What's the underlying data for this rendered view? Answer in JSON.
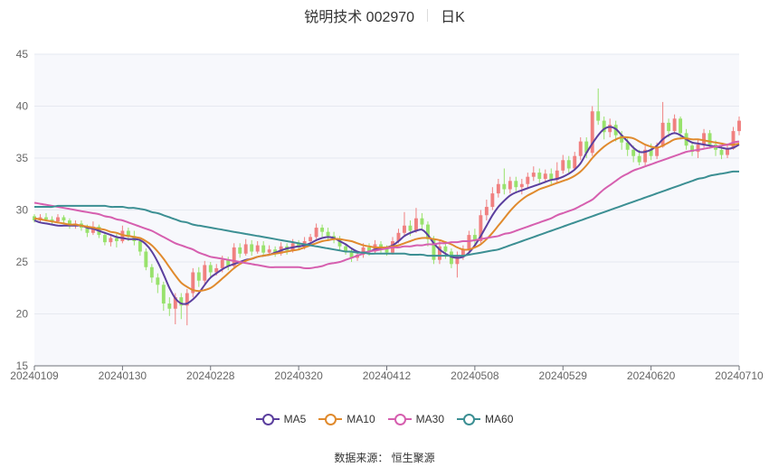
{
  "header": {
    "title": "锐明技术 002970",
    "period": "日K"
  },
  "source": "数据来源： 恒生聚源",
  "colors": {
    "up": "#f08080",
    "down": "#98e26c",
    "grid": "#e6e9f0",
    "plot_bg": "#f7f8fc"
  },
  "chart_data": {
    "type": "candlestick",
    "title": "锐明技术 002970",
    "subtitle": "日K",
    "ylim": [
      15,
      45
    ],
    "y_ticks": [
      15,
      20,
      25,
      30,
      35,
      40,
      45
    ],
    "x_ticks": [
      "20240109",
      "20240130",
      "20240228",
      "20240320",
      "20240412",
      "20240508",
      "20240529",
      "20240620",
      "20240710"
    ],
    "grid": true,
    "legend_position": "bottom",
    "legend": [
      {
        "name": "MA5",
        "color": "#5b3f9e"
      },
      {
        "name": "MA10",
        "color": "#e08a2d"
      },
      {
        "name": "MA30",
        "color": "#d65faf"
      },
      {
        "name": "MA60",
        "color": "#3c8f93"
      }
    ],
    "candles": [
      [
        29.4,
        29.0,
        29.6,
        28.8
      ],
      [
        29.0,
        29.3,
        29.6,
        28.8
      ],
      [
        29.3,
        29.1,
        29.7,
        28.9
      ],
      [
        29.1,
        28.9,
        29.4,
        28.6
      ],
      [
        28.9,
        29.3,
        29.6,
        28.7
      ],
      [
        29.3,
        29.0,
        29.5,
        28.7
      ],
      [
        29.0,
        28.5,
        29.2,
        28.2
      ],
      [
        28.5,
        28.7,
        29.0,
        28.2
      ],
      [
        28.7,
        28.3,
        29.0,
        28.0
      ],
      [
        28.3,
        27.8,
        28.6,
        27.4
      ],
      [
        27.8,
        28.4,
        28.9,
        27.6
      ],
      [
        28.4,
        27.6,
        28.6,
        27.3
      ],
      [
        27.6,
        26.9,
        27.9,
        26.6
      ],
      [
        26.9,
        27.3,
        27.6,
        26.5
      ],
      [
        27.3,
        27.0,
        27.7,
        26.4
      ],
      [
        27.0,
        28.0,
        28.5,
        26.8
      ],
      [
        28.0,
        27.5,
        28.3,
        27.0
      ],
      [
        27.5,
        27.0,
        28.0,
        26.6
      ],
      [
        27.0,
        26.0,
        27.2,
        25.6
      ],
      [
        26.0,
        24.5,
        26.3,
        24.2
      ],
      [
        24.5,
        23.5,
        24.8,
        23.0
      ],
      [
        23.5,
        22.8,
        23.9,
        22.0
      ],
      [
        22.8,
        21.0,
        23.1,
        20.3
      ],
      [
        21.0,
        20.5,
        21.6,
        19.8
      ],
      [
        20.5,
        21.6,
        22.0,
        19.0
      ],
      [
        21.6,
        20.8,
        22.0,
        19.5
      ],
      [
        20.8,
        22.0,
        22.4,
        18.9
      ],
      [
        22.0,
        24.0,
        24.4,
        21.6
      ],
      [
        24.0,
        23.2,
        24.5,
        22.6
      ],
      [
        23.2,
        24.7,
        25.1,
        22.8
      ],
      [
        24.7,
        24.0,
        25.0,
        23.5
      ],
      [
        24.0,
        24.4,
        24.8,
        23.7
      ],
      [
        24.4,
        25.2,
        25.6,
        24.0
      ],
      [
        25.2,
        24.6,
        25.5,
        24.2
      ],
      [
        24.6,
        26.4,
        26.8,
        24.4
      ],
      [
        26.4,
        25.8,
        26.8,
        25.4
      ],
      [
        25.8,
        26.7,
        27.2,
        25.6
      ],
      [
        26.7,
        26.0,
        27.1,
        25.6
      ],
      [
        26.0,
        26.6,
        27.0,
        25.8
      ],
      [
        26.6,
        25.9,
        27.0,
        25.6
      ],
      [
        25.9,
        26.2,
        26.6,
        25.6
      ],
      [
        26.2,
        25.8,
        26.5,
        25.5
      ],
      [
        25.8,
        26.5,
        26.9,
        25.6
      ],
      [
        26.5,
        26.1,
        26.8,
        25.7
      ],
      [
        26.1,
        26.8,
        27.2,
        25.9
      ],
      [
        26.8,
        26.4,
        27.1,
        26.1
      ],
      [
        26.4,
        27.0,
        27.4,
        26.2
      ],
      [
        27.0,
        27.4,
        27.7,
        26.6
      ],
      [
        27.4,
        28.3,
        28.7,
        27.2
      ],
      [
        28.3,
        27.9,
        28.6,
        27.4
      ],
      [
        27.9,
        27.5,
        28.3,
        27.1
      ],
      [
        27.5,
        27.2,
        27.9,
        26.8
      ],
      [
        27.2,
        26.5,
        27.5,
        26.1
      ],
      [
        26.5,
        26.0,
        26.8,
        25.7
      ],
      [
        26.0,
        25.4,
        26.3,
        25.0
      ],
      [
        25.4,
        25.7,
        26.0,
        25.1
      ],
      [
        25.7,
        26.4,
        26.8,
        25.4
      ],
      [
        26.4,
        26.0,
        26.8,
        25.6
      ],
      [
        26.0,
        26.7,
        27.1,
        25.8
      ],
      [
        26.7,
        26.3,
        27.0,
        25.9
      ],
      [
        26.3,
        25.9,
        26.6,
        25.6
      ],
      [
        25.9,
        27.0,
        27.4,
        25.7
      ],
      [
        27.0,
        27.8,
        28.2,
        26.8
      ],
      [
        27.8,
        28.5,
        29.8,
        27.5
      ],
      [
        28.5,
        28.0,
        29.0,
        27.5
      ],
      [
        28.0,
        29.2,
        30.2,
        27.8
      ],
      [
        29.2,
        28.6,
        29.7,
        28.1
      ],
      [
        28.6,
        27.2,
        28.9,
        26.5
      ],
      [
        27.2,
        25.2,
        27.5,
        24.8
      ],
      [
        25.2,
        26.5,
        27.0,
        24.8
      ],
      [
        26.5,
        26.0,
        26.9,
        25.3
      ],
      [
        26.0,
        24.8,
        26.3,
        24.4
      ],
      [
        24.8,
        25.6,
        26.0,
        23.5
      ],
      [
        25.6,
        26.2,
        26.6,
        25.2
      ],
      [
        26.2,
        27.6,
        28.0,
        26.0
      ],
      [
        27.6,
        27.0,
        28.2,
        26.6
      ],
      [
        27.0,
        29.5,
        30.0,
        26.8
      ],
      [
        29.5,
        30.3,
        31.0,
        29.0
      ],
      [
        30.3,
        31.6,
        32.2,
        30.0
      ],
      [
        31.6,
        32.5,
        33.0,
        31.2
      ],
      [
        32.5,
        32.0,
        34.0,
        31.5
      ],
      [
        32.0,
        32.8,
        33.2,
        31.6
      ],
      [
        32.8,
        32.2,
        33.2,
        31.8
      ],
      [
        32.2,
        32.5,
        33.0,
        31.5
      ],
      [
        32.5,
        33.2,
        33.6,
        32.0
      ],
      [
        33.2,
        33.6,
        34.2,
        32.8
      ],
      [
        33.6,
        33.0,
        34.0,
        32.5
      ],
      [
        33.0,
        33.5,
        33.9,
        32.7
      ],
      [
        33.5,
        32.9,
        34.0,
        32.5
      ],
      [
        32.9,
        33.8,
        34.6,
        32.6
      ],
      [
        33.8,
        34.8,
        35.3,
        33.5
      ],
      [
        34.8,
        34.0,
        35.2,
        33.6
      ],
      [
        34.0,
        35.2,
        35.6,
        33.8
      ],
      [
        35.2,
        36.6,
        37.0,
        34.8
      ],
      [
        36.6,
        35.5,
        37.0,
        35.0
      ],
      [
        35.5,
        39.5,
        40.0,
        35.2
      ],
      [
        39.5,
        38.6,
        41.7,
        38.2
      ],
      [
        38.6,
        37.5,
        39.0,
        36.8
      ],
      [
        37.5,
        38.2,
        38.8,
        37.0
      ],
      [
        38.2,
        37.2,
        38.6,
        36.6
      ],
      [
        37.2,
        36.5,
        37.6,
        35.8
      ],
      [
        36.5,
        35.8,
        36.9,
        35.2
      ],
      [
        35.8,
        35.2,
        36.2,
        34.6
      ],
      [
        35.2,
        34.6,
        35.8,
        34.3
      ],
      [
        34.6,
        35.8,
        36.2,
        34.3
      ],
      [
        35.8,
        35.2,
        36.4,
        34.8
      ],
      [
        35.2,
        36.1,
        36.5,
        34.9
      ],
      [
        36.1,
        38.4,
        40.4,
        36.0
      ],
      [
        38.4,
        37.6,
        38.8,
        37.0
      ],
      [
        37.6,
        38.8,
        39.2,
        37.4
      ],
      [
        38.8,
        37.4,
        39.0,
        36.8
      ],
      [
        37.4,
        36.2,
        37.8,
        35.8
      ],
      [
        36.2,
        35.6,
        36.6,
        35.2
      ],
      [
        35.6,
        36.3,
        36.8,
        35.0
      ],
      [
        36.3,
        37.4,
        37.8,
        36.0
      ],
      [
        37.4,
        36.3,
        37.7,
        35.9
      ],
      [
        36.3,
        35.8,
        36.7,
        35.2
      ],
      [
        35.8,
        35.3,
        36.2,
        34.9
      ],
      [
        35.3,
        35.9,
        36.4,
        35.0
      ],
      [
        35.9,
        37.6,
        38.0,
        35.8
      ],
      [
        37.6,
        38.6,
        39.0,
        37.2
      ]
    ],
    "series": [
      {
        "name": "MA5",
        "values": [
          29.0,
          28.8,
          28.7,
          28.6,
          28.5,
          28.5,
          28.5,
          28.5,
          28.5,
          28.3,
          28.2,
          28.0,
          27.8,
          27.6,
          27.4,
          27.3,
          27.2,
          27.2,
          27.1,
          26.7,
          26.0,
          25.0,
          23.8,
          22.5,
          21.5,
          21.0,
          21.0,
          21.4,
          22.0,
          22.8,
          23.5,
          23.9,
          24.3,
          24.6,
          24.8,
          25.0,
          25.2,
          25.3,
          25.5,
          25.6,
          25.7,
          25.9,
          26.1,
          26.3,
          26.4,
          26.5,
          26.6,
          26.8,
          27.1,
          27.3,
          27.4,
          27.3,
          27.0,
          26.7,
          26.3,
          26.0,
          25.9,
          26.0,
          26.2,
          26.3,
          26.4,
          26.6,
          27.0,
          27.5,
          27.8,
          28.0,
          28.1,
          27.6,
          26.8,
          26.2,
          25.8,
          25.5,
          25.4,
          25.5,
          25.9,
          26.6,
          27.5,
          28.5,
          29.5,
          30.3,
          30.9,
          31.4,
          31.7,
          31.9,
          32.1,
          32.3,
          32.5,
          32.7,
          32.9,
          33.0,
          33.2,
          33.5,
          33.9,
          34.5,
          35.5,
          36.4,
          37.2,
          37.8,
          38.0,
          37.8,
          37.2,
          36.6,
          36.0,
          35.6,
          35.6,
          35.8,
          36.2,
          36.8,
          37.2,
          37.4,
          37.2,
          36.8,
          36.5,
          36.4,
          36.3,
          36.2,
          36.1,
          36.0,
          35.9,
          36.0,
          36.3
        ],
        "color": "#5b3f9e"
      },
      {
        "name": "MA10",
        "values": [
          29.2,
          29.1,
          29.0,
          28.9,
          28.8,
          28.7,
          28.6,
          28.6,
          28.5,
          28.4,
          28.3,
          28.2,
          28.1,
          27.9,
          27.8,
          27.6,
          27.5,
          27.4,
          27.3,
          27.0,
          26.6,
          26.0,
          25.3,
          24.5,
          23.7,
          23.0,
          22.6,
          22.3,
          22.2,
          22.3,
          22.5,
          22.9,
          23.4,
          23.9,
          24.4,
          24.8,
          25.1,
          25.3,
          25.5,
          25.6,
          25.7,
          25.8,
          25.9,
          26.0,
          26.1,
          26.2,
          26.4,
          26.6,
          26.8,
          27.0,
          27.1,
          27.2,
          27.2,
          27.1,
          27.0,
          26.8,
          26.6,
          26.5,
          26.4,
          26.4,
          26.4,
          26.5,
          26.6,
          26.8,
          27.0,
          27.2,
          27.3,
          27.3,
          27.2,
          27.1,
          26.9,
          26.7,
          26.4,
          26.2,
          26.2,
          26.4,
          26.7,
          27.2,
          27.8,
          28.5,
          29.2,
          29.9,
          30.5,
          31.0,
          31.4,
          31.7,
          32.0,
          32.2,
          32.4,
          32.6,
          32.8,
          33.0,
          33.3,
          33.7,
          34.3,
          35.0,
          35.6,
          36.1,
          36.5,
          36.8,
          37.0,
          37.0,
          36.9,
          36.6,
          36.3,
          36.1,
          36.0,
          36.2,
          36.5,
          36.8,
          36.9,
          36.9,
          36.8,
          36.8,
          36.7,
          36.6,
          36.5,
          36.4,
          36.3,
          36.3,
          36.4
        ],
        "color": "#e08a2d"
      },
      {
        "name": "MA30",
        "values": [
          30.7,
          30.6,
          30.5,
          30.4,
          30.3,
          30.2,
          30.1,
          30.0,
          29.9,
          29.8,
          29.7,
          29.6,
          29.4,
          29.3,
          29.1,
          29.0,
          28.8,
          28.6,
          28.4,
          28.2,
          28.0,
          27.7,
          27.4,
          27.1,
          26.8,
          26.6,
          26.4,
          26.2,
          25.9,
          25.7,
          25.5,
          25.4,
          25.3,
          25.2,
          25.1,
          25.0,
          24.9,
          24.8,
          24.7,
          24.6,
          24.5,
          24.5,
          24.5,
          24.5,
          24.5,
          24.5,
          24.4,
          24.4,
          24.5,
          24.6,
          24.8,
          24.9,
          25.0,
          25.2,
          25.4,
          25.6,
          25.8,
          26.0,
          26.1,
          26.2,
          26.3,
          26.4,
          26.4,
          26.5,
          26.5,
          26.6,
          26.6,
          26.7,
          26.7,
          26.8,
          26.8,
          26.9,
          26.9,
          27.0,
          27.0,
          27.1,
          27.2,
          27.3,
          27.4,
          27.5,
          27.7,
          27.8,
          28.0,
          28.2,
          28.4,
          28.6,
          28.8,
          29.0,
          29.2,
          29.5,
          29.7,
          29.9,
          30.1,
          30.4,
          30.7,
          31.0,
          31.5,
          32.0,
          32.4,
          32.8,
          33.2,
          33.5,
          33.8,
          34.0,
          34.2,
          34.4,
          34.6,
          34.8,
          35.0,
          35.2,
          35.4,
          35.6,
          35.7,
          35.8,
          35.9,
          36.0,
          36.1,
          36.2,
          36.3,
          36.5,
          36.6
        ],
        "color": "#d65faf"
      },
      {
        "name": "MA60",
        "values": [
          30.3,
          30.3,
          30.3,
          30.3,
          30.4,
          30.4,
          30.4,
          30.4,
          30.4,
          30.4,
          30.4,
          30.4,
          30.4,
          30.3,
          30.3,
          30.3,
          30.2,
          30.2,
          30.1,
          30.0,
          29.8,
          29.7,
          29.5,
          29.3,
          29.1,
          28.9,
          28.8,
          28.6,
          28.5,
          28.4,
          28.3,
          28.2,
          28.1,
          28.0,
          27.9,
          27.8,
          27.7,
          27.6,
          27.5,
          27.4,
          27.3,
          27.2,
          27.1,
          27.0,
          26.9,
          26.8,
          26.7,
          26.6,
          26.5,
          26.4,
          26.3,
          26.2,
          26.1,
          26.0,
          26.0,
          25.9,
          25.9,
          25.8,
          25.8,
          25.8,
          25.8,
          25.8,
          25.8,
          25.8,
          25.7,
          25.7,
          25.7,
          25.6,
          25.6,
          25.6,
          25.6,
          25.6,
          25.6,
          25.6,
          25.7,
          25.8,
          25.9,
          26.0,
          26.1,
          26.2,
          26.4,
          26.6,
          26.8,
          27.0,
          27.2,
          27.4,
          27.6,
          27.8,
          28.0,
          28.2,
          28.4,
          28.6,
          28.8,
          29.0,
          29.2,
          29.4,
          29.6,
          29.8,
          30.0,
          30.2,
          30.4,
          30.6,
          30.8,
          31.0,
          31.2,
          31.4,
          31.6,
          31.8,
          32.0,
          32.2,
          32.4,
          32.6,
          32.8,
          33.0,
          33.1,
          33.3,
          33.4,
          33.5,
          33.6,
          33.7,
          33.7
        ],
        "color": "#3c8f93"
      }
    ]
  }
}
